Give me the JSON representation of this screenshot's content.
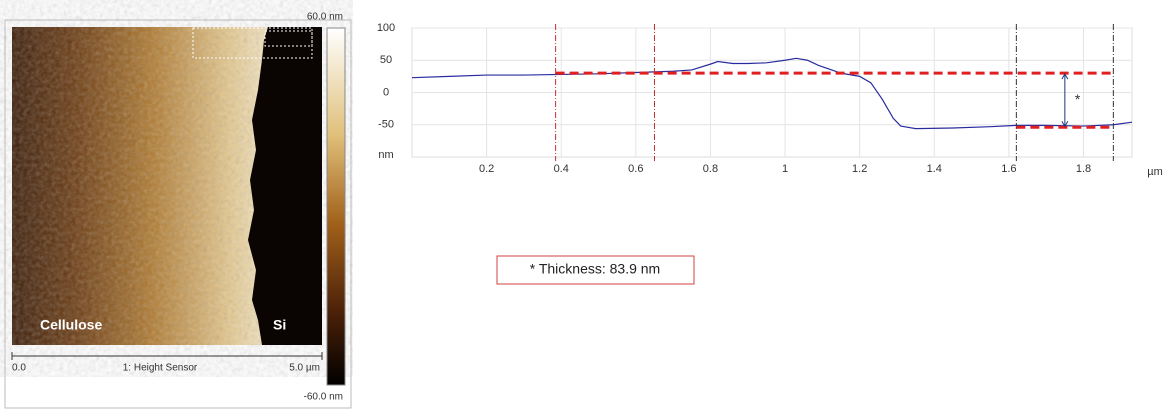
{
  "image_panel": {
    "colorbar_max": "60.0 nm",
    "colorbar_min": "-60.0 nm",
    "scale_start": "0.0",
    "scale_title": "1: Height Sensor",
    "scale_end": "5.0 µm",
    "left_label": "Cellulose",
    "right_label": "Si"
  },
  "chart_data": {
    "type": "line",
    "y_unit_label": "nm",
    "x_unit_label": "µm",
    "xlim": [
      0,
      1.93
    ],
    "ylim": [
      -100,
      100
    ],
    "xticks": [
      0.2,
      0.4,
      0.6,
      0.8,
      1.0,
      1.2,
      1.4,
      1.6,
      1.8
    ],
    "yticks": [
      100,
      50,
      0,
      -50
    ],
    "grid": true,
    "series": [
      {
        "color": "#2a2aa0",
        "x": [
          0,
          0.1,
          0.2,
          0.3,
          0.4,
          0.5,
          0.6,
          0.7,
          0.75,
          0.8,
          0.82,
          0.86,
          0.9,
          0.95,
          1.0,
          1.03,
          1.06,
          1.09,
          1.12,
          1.15,
          1.2,
          1.23,
          1.26,
          1.29,
          1.31,
          1.35,
          1.45,
          1.55,
          1.62,
          1.7,
          1.8,
          1.88,
          1.93
        ],
        "values": [
          23,
          25,
          27,
          27,
          28,
          29,
          31,
          33,
          35,
          44,
          48,
          45,
          45,
          46,
          50,
          53,
          50,
          42,
          36,
          30,
          25,
          15,
          -10,
          -40,
          -52,
          -56,
          -55,
          -53,
          -51,
          -51,
          -52,
          -50,
          -46
        ]
      }
    ],
    "cursors": [
      {
        "x": 0.385,
        "color": "#c03030"
      },
      {
        "x": 0.65,
        "color": "#c03030"
      },
      {
        "x": 1.62,
        "color": "#333333"
      },
      {
        "x": 1.88,
        "color": "#333333"
      }
    ],
    "reference_lines": [
      {
        "y": 30,
        "x": [
          0.385,
          1.88
        ],
        "color": "#e02020"
      },
      {
        "y": -53.9,
        "x": [
          1.62,
          1.88
        ],
        "color": "#e02020"
      }
    ],
    "arrow": {
      "x": 1.75,
      "y": [
        30,
        -53.9
      ],
      "label": "*"
    },
    "annotation": "* Thickness: 83.9 nm"
  }
}
